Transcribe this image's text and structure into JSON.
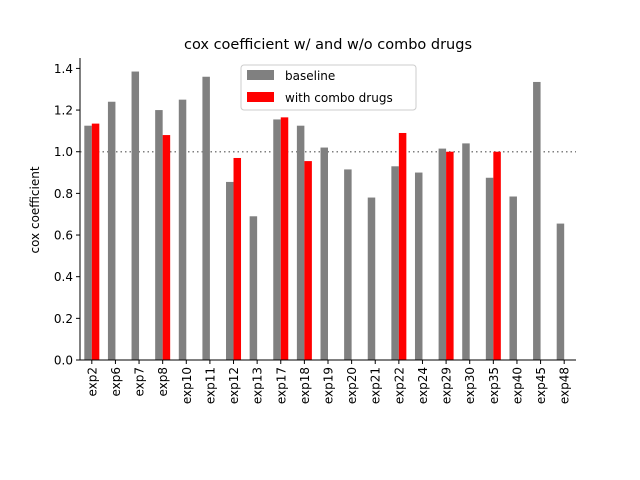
{
  "chart_data": {
    "type": "bar",
    "title": "cox coefficient w/ and w/o combo drugs",
    "xlabel": "",
    "ylabel": "cox coefficient",
    "ylim": [
      0,
      1.45
    ],
    "yticks": [
      0.0,
      0.2,
      0.4,
      0.6,
      0.8,
      1.0,
      1.2,
      1.4
    ],
    "ytick_labels": [
      "0.0",
      "0.2",
      "0.4",
      "0.6",
      "0.8",
      "1.0",
      "1.2",
      "1.4"
    ],
    "reference_line": {
      "y": 1.0,
      "style": "dotted",
      "color": "#808080"
    },
    "grid": false,
    "legend": {
      "placement": "top-center"
    },
    "categories": [
      "exp2",
      "exp6",
      "exp7",
      "exp8",
      "exp10",
      "exp11",
      "exp12",
      "exp13",
      "exp17",
      "exp18",
      "exp19",
      "exp20",
      "exp21",
      "exp22",
      "exp24",
      "exp29",
      "exp30",
      "exp35",
      "exp40",
      "exp45",
      "exp48"
    ],
    "series": [
      {
        "name": "baseline",
        "color": "#808080",
        "values": [
          1.125,
          1.24,
          1.385,
          1.2,
          1.25,
          1.36,
          0.855,
          0.69,
          1.155,
          1.125,
          1.02,
          0.915,
          0.78,
          0.93,
          0.9,
          1.015,
          1.04,
          0.875,
          0.785,
          1.335,
          0.655
        ]
      },
      {
        "name": "with combo drugs",
        "color": "#ff0000",
        "values": [
          1.135,
          null,
          null,
          1.08,
          null,
          null,
          0.97,
          null,
          1.165,
          0.955,
          null,
          null,
          null,
          1.09,
          null,
          1.0,
          null,
          1.0,
          null,
          null,
          null
        ]
      }
    ]
  }
}
